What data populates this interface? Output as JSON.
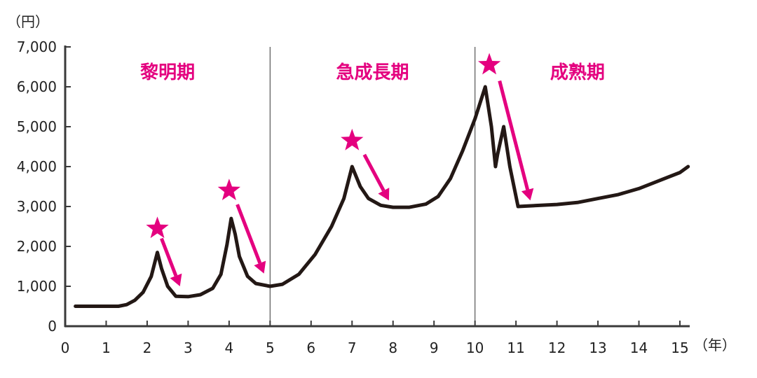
{
  "chart_data": {
    "type": "line",
    "y_unit": "（円）",
    "x_unit": "（年）",
    "xlim": [
      0,
      15
    ],
    "ylim": [
      0,
      7000
    ],
    "x_ticks": [
      0,
      1,
      2,
      3,
      4,
      5,
      6,
      7,
      8,
      9,
      10,
      11,
      12,
      13,
      14,
      15
    ],
    "y_ticks": [
      0,
      1000,
      2000,
      3000,
      4000,
      5000,
      6000,
      7000
    ],
    "y_tick_labels": [
      "0",
      "1,000",
      "2,000",
      "3,000",
      "4,000",
      "5,000",
      "6,000",
      "7,000"
    ],
    "grid": false,
    "colors": {
      "line": "#231815",
      "accent": "#e4007f",
      "divider": "#555555"
    },
    "phases": [
      {
        "label": "黎明期",
        "center_x": 2.5
      },
      {
        "label": "急成長期",
        "center_x": 7.5
      },
      {
        "label": "成熟期",
        "center_x": 12.5
      }
    ],
    "dividers_x": [
      5,
      10
    ],
    "series": [
      {
        "points": [
          [
            0.25,
            500
          ],
          [
            1.3,
            500
          ],
          [
            1.5,
            540
          ],
          [
            1.7,
            650
          ],
          [
            1.9,
            850
          ],
          [
            2.1,
            1250
          ],
          [
            2.25,
            1850
          ],
          [
            2.35,
            1450
          ],
          [
            2.5,
            1000
          ],
          [
            2.7,
            750
          ],
          [
            3.0,
            740
          ],
          [
            3.3,
            790
          ],
          [
            3.6,
            950
          ],
          [
            3.8,
            1300
          ],
          [
            3.95,
            2050
          ],
          [
            4.05,
            2700
          ],
          [
            4.15,
            2300
          ],
          [
            4.25,
            1750
          ],
          [
            4.45,
            1250
          ],
          [
            4.65,
            1070
          ],
          [
            5.0,
            1000
          ],
          [
            5.3,
            1050
          ],
          [
            5.7,
            1300
          ],
          [
            6.1,
            1800
          ],
          [
            6.5,
            2500
          ],
          [
            6.8,
            3200
          ],
          [
            7.0,
            4000
          ],
          [
            7.2,
            3500
          ],
          [
            7.4,
            3200
          ],
          [
            7.7,
            3030
          ],
          [
            8.0,
            2980
          ],
          [
            8.4,
            2980
          ],
          [
            8.8,
            3060
          ],
          [
            9.1,
            3250
          ],
          [
            9.4,
            3700
          ],
          [
            9.7,
            4400
          ],
          [
            10.0,
            5200
          ],
          [
            10.25,
            6000
          ],
          [
            10.4,
            5000
          ],
          [
            10.5,
            4000
          ],
          [
            10.55,
            4300
          ],
          [
            10.7,
            5000
          ],
          [
            10.85,
            4000
          ],
          [
            11.05,
            3000
          ],
          [
            12.0,
            3050
          ],
          [
            12.5,
            3100
          ],
          [
            13.0,
            3200
          ],
          [
            13.5,
            3300
          ],
          [
            14.0,
            3450
          ],
          [
            14.5,
            3650
          ],
          [
            15.0,
            3850
          ],
          [
            15.2,
            4000
          ]
        ]
      }
    ],
    "markers": [
      {
        "star": [
          2.25,
          2450
        ],
        "arrow_from": [
          2.35,
          2200
        ],
        "arrow_to": [
          2.8,
          1000
        ]
      },
      {
        "star": [
          4.0,
          3400
        ],
        "arrow_from": [
          4.2,
          3050
        ],
        "arrow_to": [
          4.85,
          1320
        ]
      },
      {
        "star": [
          7.0,
          4650
        ],
        "arrow_from": [
          7.3,
          4300
        ],
        "arrow_to": [
          7.9,
          3150
        ]
      },
      {
        "star": [
          10.35,
          6550
        ],
        "arrow_from": [
          10.6,
          6150
        ],
        "arrow_to": [
          11.35,
          3150
        ]
      }
    ]
  }
}
